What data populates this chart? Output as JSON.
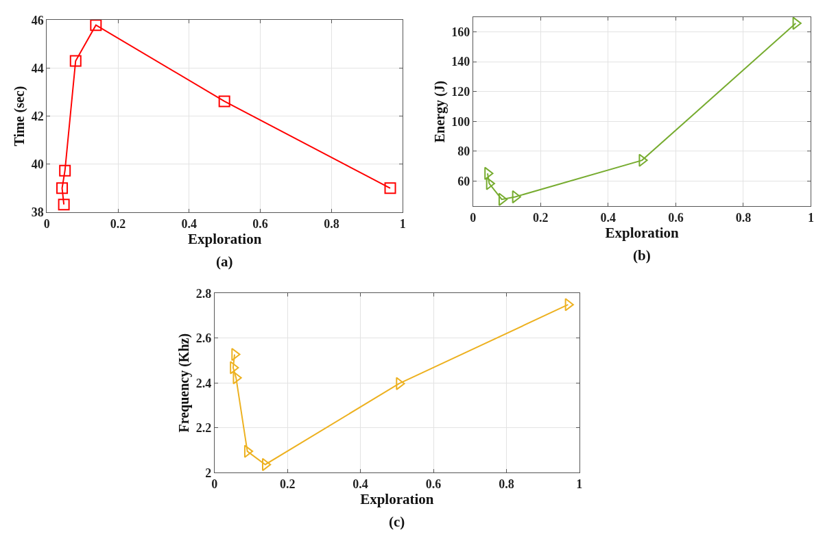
{
  "chart_data": [
    {
      "type": "line",
      "xlabel": "Exploration",
      "ylabel": "Time (sec)",
      "annotations": [
        "(a)"
      ],
      "x": [
        0.048,
        0.043,
        0.051,
        0.081,
        0.138,
        0.499,
        0.965
      ],
      "series": [
        {
          "color": "#ff0000",
          "values": [
            38.32,
            39.0,
            39.73,
            44.3,
            45.79,
            42.62,
            39.0
          ]
        }
      ],
      "xlim": [
        0,
        1
      ],
      "xticks": [
        0,
        0.2,
        0.4,
        0.6,
        0.8,
        1
      ],
      "ylim": [
        38,
        46
      ],
      "yticks": [
        38,
        40,
        42,
        44,
        46
      ],
      "grid": true,
      "marker": "square",
      "line_style": "solid"
    },
    {
      "type": "line",
      "xlabel": "Exploration",
      "ylabel": "Energy (J)",
      "annotations": [
        "(b)"
      ],
      "x": [
        0.043,
        0.048,
        0.085,
        0.125,
        0.5,
        0.955
      ],
      "series": [
        {
          "color": "#77ac30",
          "values": [
            65.1,
            58.3,
            47.7,
            49.4,
            73.9,
            165.7
          ]
        }
      ],
      "xlim": [
        0,
        1
      ],
      "xticks": [
        0,
        0.2,
        0.4,
        0.6,
        0.8,
        1
      ],
      "ylim": [
        43,
        170
      ],
      "yticks": [
        60,
        80,
        100,
        120,
        140,
        160
      ],
      "grid": true,
      "marker": "triangle",
      "line_style": "solid"
    },
    {
      "type": "line",
      "xlabel": "Exploration",
      "ylabel": "Frequency (Khz)",
      "annotations": [
        "(c)"
      ],
      "x": [
        0.055,
        0.051,
        0.059,
        0.09,
        0.139,
        0.506,
        0.969
      ],
      "series": [
        {
          "color": "#edb120",
          "values": [
            2.527,
            2.468,
            2.423,
            2.095,
            2.036,
            2.397,
            2.749
          ]
        }
      ],
      "xlim": [
        0,
        1
      ],
      "xticks": [
        0,
        0.2,
        0.4,
        0.6,
        0.8,
        1
      ],
      "ylim": [
        2,
        2.8
      ],
      "yticks": [
        2,
        2.2,
        2.4,
        2.6,
        2.8
      ],
      "grid": true,
      "marker": "triangle",
      "line_style": "solid"
    }
  ]
}
